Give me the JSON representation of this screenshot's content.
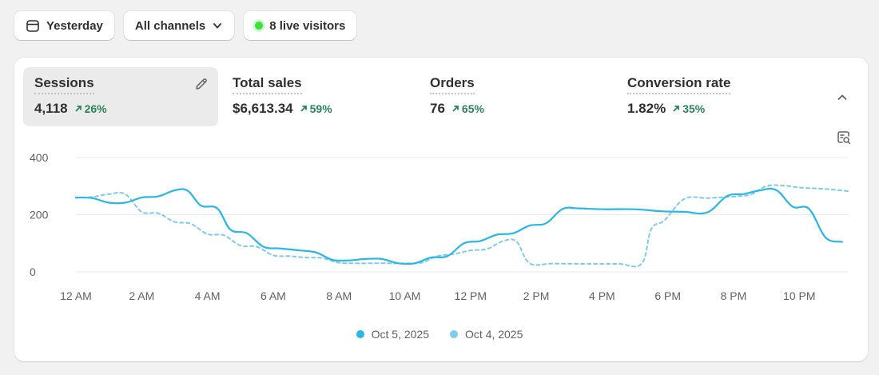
{
  "toolbar": {
    "date_label": "Yesterday",
    "channel_label": "All channels",
    "live_label": "8 live visitors"
  },
  "metrics": [
    {
      "label": "Sessions",
      "value": "4,118",
      "change": "26%"
    },
    {
      "label": "Total sales",
      "value": "$6,613.34",
      "change": "59%"
    },
    {
      "label": "Orders",
      "value": "76",
      "change": "65%"
    },
    {
      "label": "Conversion rate",
      "value": "1.82%",
      "change": "35%"
    }
  ],
  "colors": {
    "primary_series": "#29b6e8",
    "comparison_series": "#7ecbea",
    "positive_change": "#29845a",
    "live_dot": "#3be23b"
  },
  "chart_data": {
    "type": "line",
    "title": "",
    "xlabel": "",
    "ylabel": "",
    "x_tick_labels": [
      "12 AM",
      "2 AM",
      "4 AM",
      "6 AM",
      "8 AM",
      "10 AM",
      "12 PM",
      "2 PM",
      "4 PM",
      "6 PM",
      "8 PM",
      "10 PM"
    ],
    "y_tick_labels": [
      "400",
      "200",
      "0"
    ],
    "ylim": [
      0,
      400
    ],
    "xlim": [
      0,
      23.5
    ],
    "grid": true,
    "legend_position": "bottom",
    "series": [
      {
        "name": "Oct 5, 2025",
        "style": "solid",
        "points": [
          [
            0,
            260
          ],
          [
            0.5,
            258
          ],
          [
            1,
            242
          ],
          [
            1.5,
            242
          ],
          [
            2,
            260
          ],
          [
            2.5,
            264
          ],
          [
            3,
            285
          ],
          [
            3.4,
            284
          ],
          [
            3.8,
            232
          ],
          [
            4.3,
            222
          ],
          [
            4.7,
            148
          ],
          [
            5.2,
            135
          ],
          [
            5.7,
            88
          ],
          [
            6.2,
            82
          ],
          [
            6.8,
            75
          ],
          [
            7.3,
            68
          ],
          [
            7.8,
            42
          ],
          [
            8.3,
            40
          ],
          [
            8.8,
            45
          ],
          [
            9.3,
            45
          ],
          [
            9.8,
            30
          ],
          [
            10.3,
            30
          ],
          [
            10.8,
            50
          ],
          [
            11.3,
            55
          ],
          [
            11.8,
            100
          ],
          [
            12.3,
            108
          ],
          [
            12.8,
            130
          ],
          [
            13.3,
            135
          ],
          [
            13.8,
            162
          ],
          [
            14.3,
            170
          ],
          [
            14.8,
            220
          ],
          [
            15.3,
            222
          ],
          [
            16,
            219
          ],
          [
            17,
            219
          ],
          [
            17.8,
            212
          ],
          [
            18.5,
            210
          ],
          [
            19.2,
            208
          ],
          [
            19.8,
            265
          ],
          [
            20.3,
            272
          ],
          [
            20.8,
            285
          ],
          [
            21.3,
            286
          ],
          [
            21.8,
            228
          ],
          [
            22.3,
            220
          ],
          [
            22.8,
            120
          ],
          [
            23.3,
            105
          ]
        ]
      },
      {
        "name": "Oct 4, 2025",
        "style": "dashed",
        "points": [
          [
            0,
            260
          ],
          [
            0.5,
            262
          ],
          [
            1,
            272
          ],
          [
            1.5,
            272
          ],
          [
            2,
            210
          ],
          [
            2.5,
            205
          ],
          [
            3,
            175
          ],
          [
            3.5,
            168
          ],
          [
            4,
            132
          ],
          [
            4.5,
            128
          ],
          [
            5,
            92
          ],
          [
            5.5,
            88
          ],
          [
            6,
            58
          ],
          [
            6.5,
            55
          ],
          [
            7,
            50
          ],
          [
            7.5,
            48
          ],
          [
            8,
            32
          ],
          [
            8.5,
            30
          ],
          [
            9,
            30
          ],
          [
            9.5,
            30
          ],
          [
            10,
            30
          ],
          [
            10.5,
            32
          ],
          [
            11,
            55
          ],
          [
            11.5,
            62
          ],
          [
            12,
            75
          ],
          [
            12.5,
            80
          ],
          [
            13,
            108
          ],
          [
            13.4,
            106
          ],
          [
            13.8,
            30
          ],
          [
            14.5,
            29
          ],
          [
            15.5,
            28
          ],
          [
            16.5,
            28
          ],
          [
            17.2,
            28
          ],
          [
            17.5,
            150
          ],
          [
            17.9,
            180
          ],
          [
            18.5,
            255
          ],
          [
            19.2,
            258
          ],
          [
            19.8,
            262
          ],
          [
            20.5,
            270
          ],
          [
            21,
            300
          ],
          [
            21.5,
            302
          ],
          [
            22,
            295
          ],
          [
            22.5,
            292
          ],
          [
            23,
            288
          ],
          [
            23.5,
            282
          ]
        ]
      }
    ]
  }
}
